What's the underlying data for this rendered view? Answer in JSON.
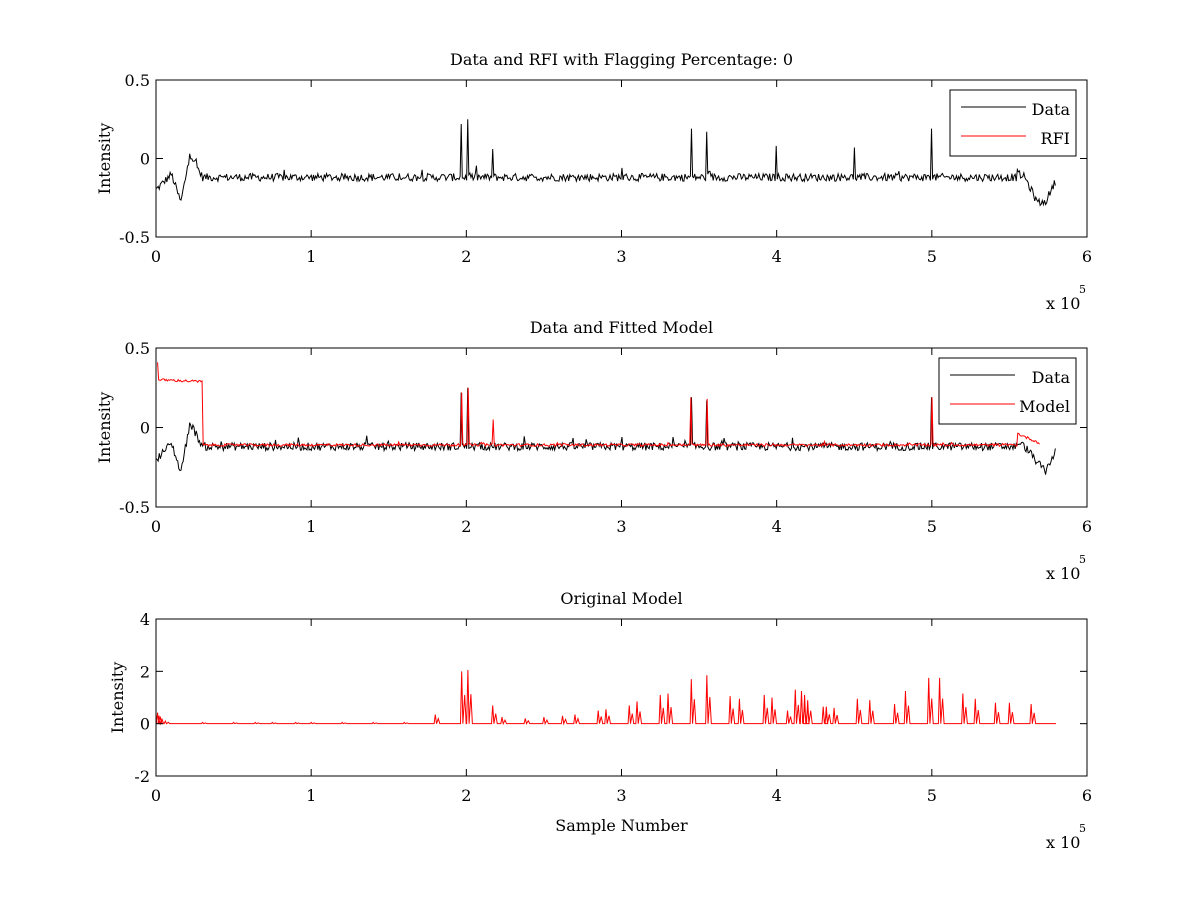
{
  "colors": {
    "data": "#000000",
    "red": "#ff0000",
    "axes": "#000000",
    "background": "#ffffff"
  },
  "chart_data": [
    {
      "type": "line",
      "title": "Data and RFI with Flagging Percentage: 0",
      "xlabel": "",
      "ylabel": "Intensity",
      "xlim": [
        0,
        600000
      ],
      "ylim": [
        -0.5,
        0.5
      ],
      "xticks": [
        0,
        1,
        2,
        3,
        4,
        5,
        6
      ],
      "xtick_labels": [
        "0",
        "1",
        "2",
        "3",
        "4",
        "5",
        "6"
      ],
      "yticks": [
        -0.5,
        0,
        0.5
      ],
      "ytick_labels": [
        "-0.5",
        "0",
        "0.5"
      ],
      "x_multiplier_label": "x 10",
      "x_multiplier_exponent": "5",
      "legend": {
        "placement": "top-right",
        "entries": [
          {
            "label": "Data",
            "color": "#000000"
          },
          {
            "label": "RFI",
            "color": "#ff0000"
          }
        ]
      },
      "series": [
        {
          "name": "Data",
          "color": "#000000",
          "baseline": -0.12,
          "noise": 0.025,
          "x": [
            0,
            10000,
            16000,
            22000,
            30000,
            100000,
            180000,
            197000,
            201000,
            217000,
            300000,
            345000,
            355000,
            400000,
            450000,
            500000,
            560000,
            568000,
            573000,
            580000
          ],
          "y": [
            -0.2,
            -0.1,
            -0.28,
            0.03,
            -0.12,
            -0.12,
            -0.1,
            0.22,
            0.25,
            0.06,
            -0.06,
            0.19,
            0.17,
            0.08,
            0.07,
            0.19,
            -0.12,
            -0.28,
            -0.28,
            -0.14
          ]
        },
        {
          "name": "RFI",
          "color": "#ff0000",
          "x": [],
          "y": []
        }
      ]
    },
    {
      "type": "line",
      "title": "Data and Fitted Model",
      "xlabel": "",
      "ylabel": "Intensity",
      "xlim": [
        0,
        600000
      ],
      "ylim": [
        -0.5,
        0.5
      ],
      "xticks": [
        0,
        1,
        2,
        3,
        4,
        5,
        6
      ],
      "xtick_labels": [
        "0",
        "1",
        "2",
        "3",
        "4",
        "5",
        "6"
      ],
      "yticks": [
        -0.5,
        0,
        0.5
      ],
      "ytick_labels": [
        "-0.5",
        "0",
        "0.5"
      ],
      "x_multiplier_label": "x 10",
      "x_multiplier_exponent": "5",
      "legend": {
        "placement": "top-right",
        "entries": [
          {
            "label": "Data",
            "color": "#000000"
          },
          {
            "label": "Model",
            "color": "#ff0000"
          }
        ]
      },
      "series": [
        {
          "name": "Data",
          "color": "#000000",
          "baseline": -0.12,
          "noise": 0.025,
          "x": [
            0,
            10000,
            16000,
            22000,
            30000,
            100000,
            197000,
            201000,
            300000,
            345000,
            355000,
            500000,
            560000,
            573000,
            580000
          ],
          "y": [
            -0.2,
            -0.1,
            -0.28,
            0.03,
            -0.12,
            -0.12,
            0.22,
            0.25,
            -0.06,
            0.19,
            0.17,
            0.19,
            -0.12,
            -0.28,
            -0.14
          ]
        },
        {
          "name": "Model",
          "color": "#ff0000",
          "baseline": -0.11,
          "noise": 0.008,
          "x": [
            1000,
            2000,
            197000,
            201000,
            217000,
            345000,
            355000,
            500000,
            570000
          ],
          "y": [
            0.41,
            0.3,
            0.22,
            0.25,
            0.05,
            0.19,
            0.18,
            0.19,
            -0.1
          ]
        }
      ]
    },
    {
      "type": "line",
      "title": "Original Model",
      "xlabel": "Sample Number",
      "ylabel": "Intensity",
      "xlim": [
        0,
        600000
      ],
      "ylim": [
        -2,
        4
      ],
      "xticks": [
        0,
        1,
        2,
        3,
        4,
        5,
        6
      ],
      "xtick_labels": [
        "0",
        "1",
        "2",
        "3",
        "4",
        "5",
        "6"
      ],
      "yticks": [
        -2,
        0,
        2,
        4
      ],
      "ytick_labels": [
        "-2",
        "0",
        "2",
        "4"
      ],
      "x_multiplier_label": "x 10",
      "x_multiplier_exponent": "5",
      "series": [
        {
          "name": "",
          "color": "#ff0000",
          "baseline": 0,
          "peaks_x": [
            1000,
            2000,
            6000,
            30000,
            50000,
            64000,
            75000,
            90000,
            100000,
            120000,
            140000,
            160000,
            180000,
            197000,
            201000,
            217000,
            223000,
            238000,
            250000,
            262000,
            270000,
            285000,
            290000,
            305000,
            310000,
            325000,
            330000,
            345000,
            355000,
            370000,
            376000,
            392000,
            397000,
            407000,
            412000,
            416000,
            418000,
            420000,
            430000,
            432000,
            437000,
            452000,
            460000,
            476000,
            483000,
            498000,
            505000,
            520000,
            528000,
            541000,
            550000,
            564000
          ],
          "peaks_y": [
            0.42,
            0.3,
            0.1,
            0.05,
            0.05,
            0.05,
            0.05,
            0.05,
            0.05,
            0.05,
            0.05,
            0.05,
            0.35,
            2.0,
            2.05,
            0.7,
            0.25,
            0.2,
            0.25,
            0.3,
            0.35,
            0.5,
            0.55,
            0.7,
            0.85,
            1.1,
            1.15,
            1.7,
            1.85,
            1.05,
            0.95,
            1.1,
            1.0,
            0.5,
            1.3,
            1.25,
            1.1,
            0.9,
            0.65,
            0.65,
            0.6,
            0.95,
            0.9,
            0.75,
            1.25,
            1.75,
            1.75,
            1.15,
            0.95,
            0.8,
            0.8,
            0.75
          ]
        }
      ]
    }
  ]
}
